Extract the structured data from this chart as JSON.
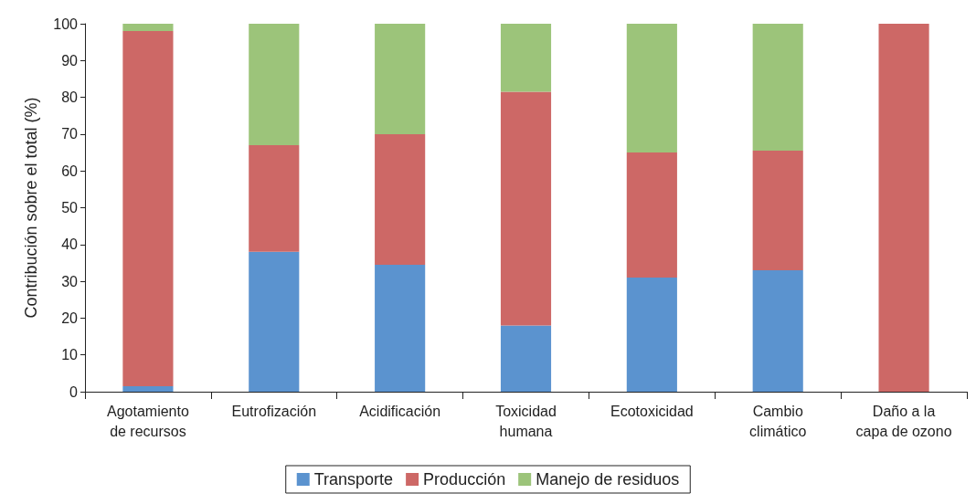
{
  "chart_data": {
    "type": "bar",
    "stacked": true,
    "ylabel": "Contribución sobre el total (%)",
    "categories": [
      "Agotamiento\nde recursos",
      "Eutrofización",
      "Acidificación",
      "Toxicidad\nhumana",
      "Ecotoxicidad",
      "Cambio\nclimático",
      "Daño a la\ncapa de ozono"
    ],
    "series": [
      {
        "name": "Transporte",
        "color": "#5b93cf",
        "values": [
          1.5,
          38,
          34.5,
          18,
          31,
          33,
          0
        ]
      },
      {
        "name": "Producción",
        "color": "#cd6866",
        "values": [
          96.5,
          29,
          35.5,
          63.5,
          34,
          32.5,
          100
        ]
      },
      {
        "name": "Manejo de residuos",
        "color": "#9cc47a",
        "values": [
          2,
          33,
          30,
          18.5,
          35,
          34.5,
          0
        ]
      }
    ],
    "ylim": [
      0,
      100
    ],
    "yticks": [
      0,
      10,
      20,
      30,
      40,
      50,
      60,
      70,
      80,
      90,
      100
    ],
    "grid": false,
    "legend": "bottom"
  }
}
